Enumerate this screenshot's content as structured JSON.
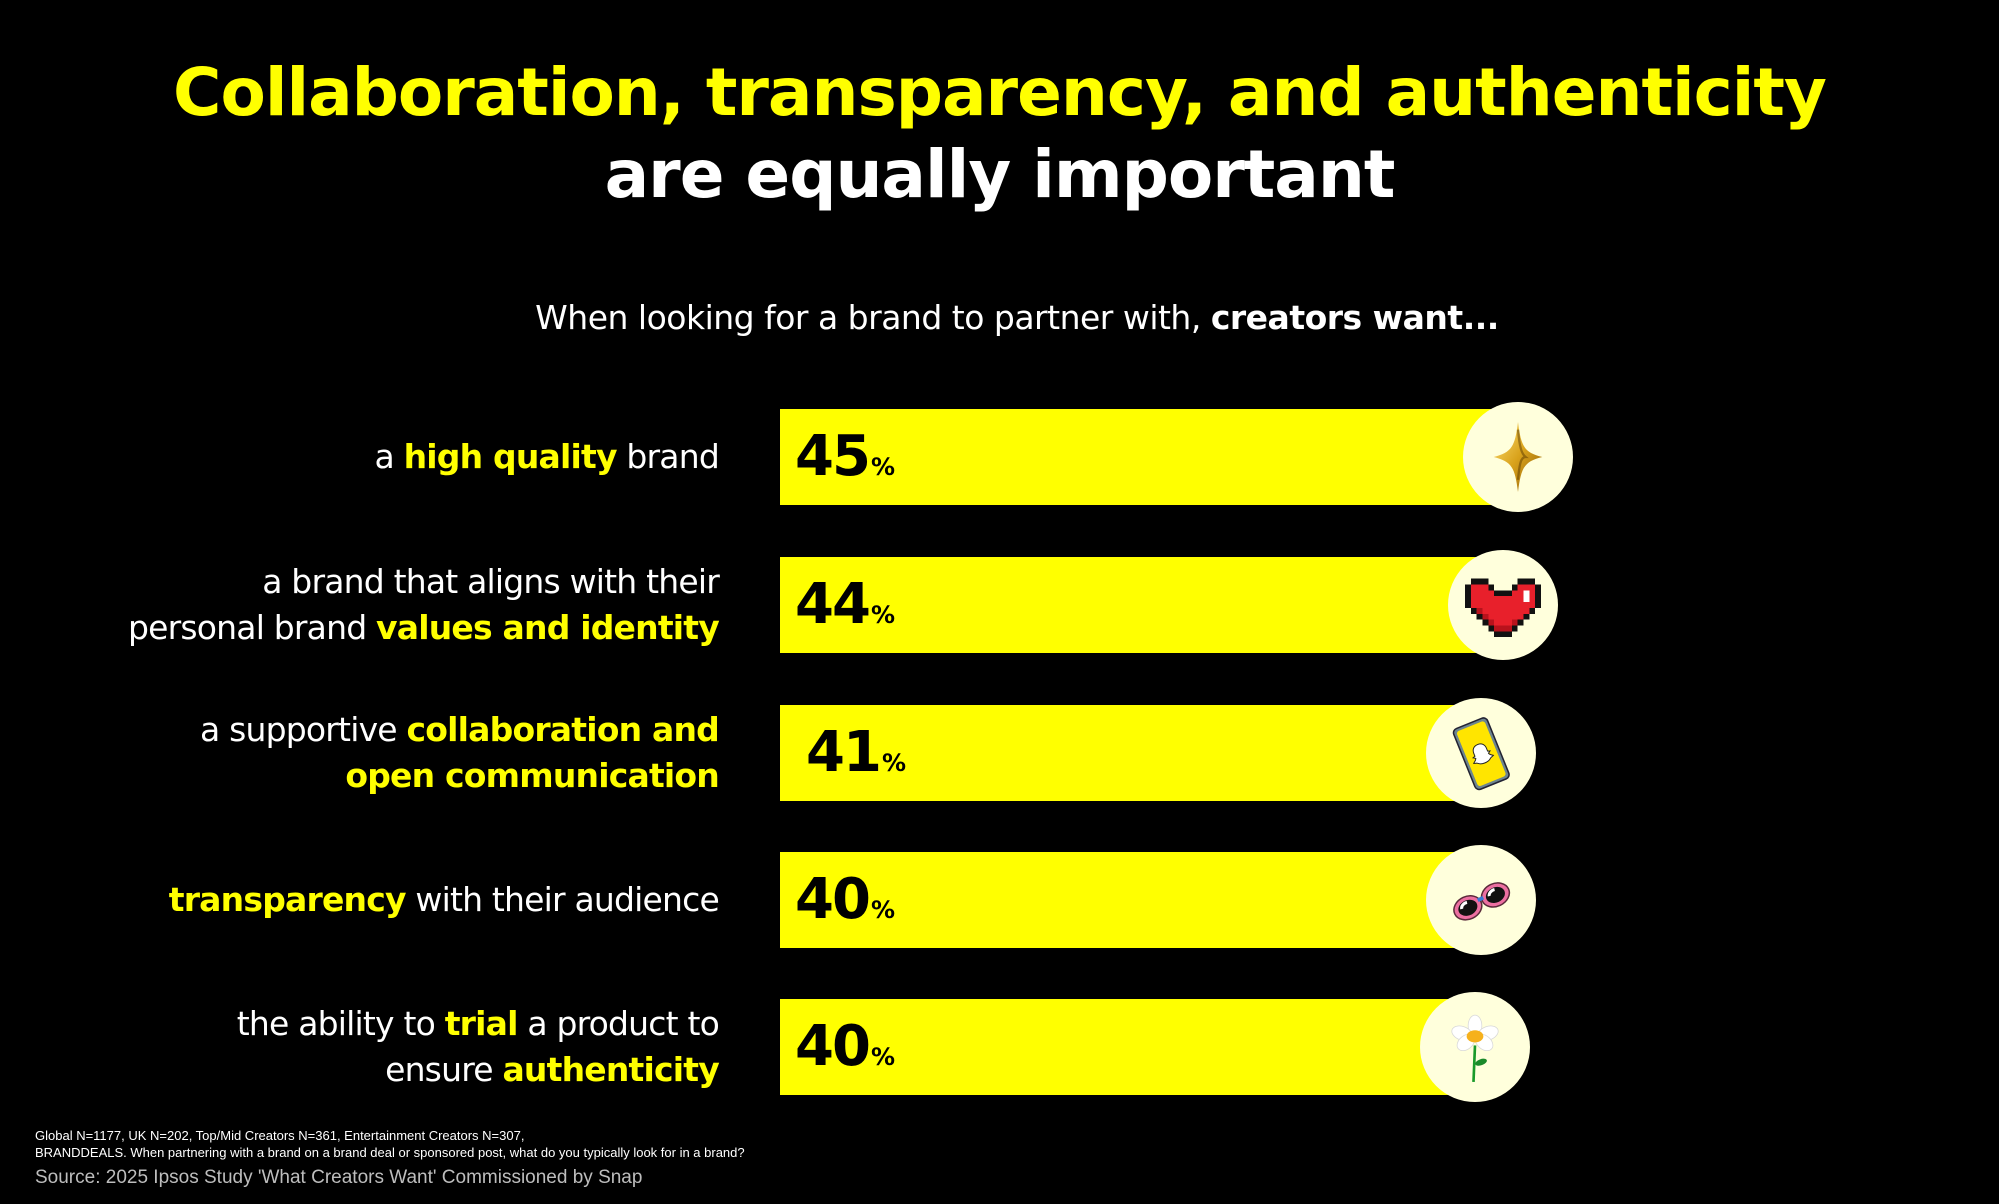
{
  "header": {
    "title_line1": "Collaboration, transparency, and authenticity",
    "title_line2": "are equally important",
    "subtitle_prefix": "When looking for a brand to partner with, ",
    "subtitle_bold": "creators want..."
  },
  "colors": {
    "background": "#000000",
    "accent_yellow": "#FFFF00",
    "icon_circle": "#FFFFDC",
    "text": "#FFFFFF"
  },
  "rows": [
    {
      "lines": [
        [
          {
            "t": "a ",
            "h": false
          },
          {
            "t": "high quality",
            "h": true
          },
          {
            "t": " brand",
            "h": false
          }
        ]
      ],
      "value": "45",
      "pct": "%",
      "icon": "sparkle-star-icon"
    },
    {
      "lines": [
        [
          {
            "t": "a brand that aligns with their",
            "h": false
          }
        ],
        [
          {
            "t": "personal brand ",
            "h": false
          },
          {
            "t": "values and identity",
            "h": true
          }
        ]
      ],
      "value": "44",
      "pct": "%",
      "icon": "pixel-heart-icon"
    },
    {
      "lines": [
        [
          {
            "t": "a supportive ",
            "h": false
          },
          {
            "t": "collaboration and",
            "h": true
          }
        ],
        [
          {
            "t": "open communication",
            "h": true
          }
        ]
      ],
      "value": "41",
      "pct": "%",
      "icon": "snapchat-phone-icon"
    },
    {
      "lines": [
        [
          {
            "t": "transparency",
            "h": true
          },
          {
            "t": " with their audience",
            "h": false
          }
        ]
      ],
      "value": "40",
      "pct": "%",
      "icon": "pink-sunglasses-icon"
    },
    {
      "lines": [
        [
          {
            "t": "the ability to ",
            "h": false
          },
          {
            "t": "trial",
            "h": true
          },
          {
            "t": " a product to",
            "h": false
          }
        ],
        [
          {
            "t": "ensure ",
            "h": false
          },
          {
            "t": "authenticity",
            "h": true
          }
        ]
      ],
      "value": "40",
      "pct": "%",
      "icon": "daisy-flower-icon"
    }
  ],
  "footer": {
    "footnote_line1": "Global N=1177, UK N=202, Top/Mid Creators N=361, Entertainment Creators N=307,",
    "footnote_line2": "BRANDDEALS. When partnering with a brand on a brand deal or sponsored post, what do you typically look for in a brand?",
    "source": "Source: 2025 Ipsos Study 'What Creators Want' Commissioned by Snap"
  },
  "chart_data": {
    "type": "bar",
    "orientation": "horizontal",
    "title": "Collaboration, transparency, and authenticity are equally important",
    "subtitle": "When looking for a brand to partner with, creators want...",
    "categories": [
      "a high quality brand",
      "a brand that aligns with their personal brand values and identity",
      "a supportive collaboration and open communication",
      "transparency with their audience",
      "the ability to trial a product to ensure authenticity"
    ],
    "values": [
      45,
      44,
      41,
      40,
      40
    ],
    "unit": "%",
    "xlabel": "",
    "ylabel": "",
    "grid": false,
    "legend": null,
    "data_labels": true,
    "bar_color": "#FFFF00"
  }
}
